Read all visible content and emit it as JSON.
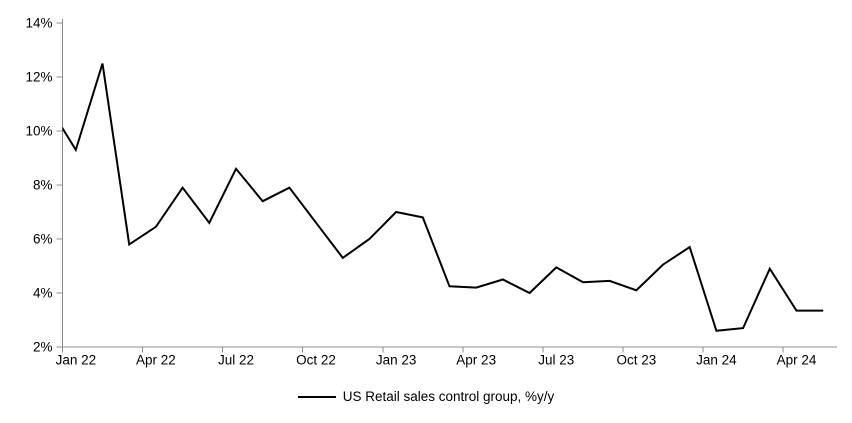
{
  "chart_data": {
    "type": "line",
    "title": "",
    "xlabel": "",
    "ylabel": "",
    "ylim": [
      2,
      14
    ],
    "y_tick_step": 2,
    "y_tick_labels": [
      "2%",
      "4%",
      "6%",
      "8%",
      "10%",
      "12%",
      "14%"
    ],
    "x_tick_labels": [
      "Jan 22",
      "Apr 22",
      "Jul 22",
      "Oct 22",
      "Jan 23",
      "Apr 23",
      "Jul 23",
      "Oct 23",
      "Jan 24",
      "Apr 24"
    ],
    "grid": false,
    "legend_position": "bottom-center",
    "first_point_clipped_at_left_axis": true,
    "series": [
      {
        "name": "US Retail sales control group, %y/y",
        "color": "#000000",
        "x": [
          "Dec 21",
          "Jan 22",
          "Feb 22",
          "Mar 22",
          "Apr 22",
          "May 22",
          "Jun 22",
          "Jul 22",
          "Aug 22",
          "Sep 22",
          "Oct 22",
          "Nov 22",
          "Dec 22",
          "Jan 23",
          "Feb 23",
          "Mar 23",
          "Apr 23",
          "May 23",
          "Jun 23",
          "Jul 23",
          "Aug 23",
          "Sep 23",
          "Oct 23",
          "Nov 23",
          "Dec 23",
          "Jan 24",
          "Feb 24",
          "Mar 24",
          "Apr 24",
          "May 24"
        ],
        "values": [
          10.9,
          9.3,
          12.5,
          5.8,
          6.45,
          7.9,
          6.6,
          8.6,
          7.4,
          7.9,
          6.6,
          5.3,
          6.0,
          7.0,
          6.8,
          4.25,
          4.2,
          4.5,
          4.0,
          4.95,
          4.4,
          4.45,
          4.1,
          5.05,
          5.7,
          2.6,
          2.7,
          4.9,
          3.35,
          3.35
        ]
      }
    ]
  },
  "legend": {
    "label": "US Retail sales control group, %y/y"
  },
  "colors": {
    "background": "#ffffff",
    "axis": "#8c8c8c",
    "text": "#000000",
    "series": "#000000"
  }
}
